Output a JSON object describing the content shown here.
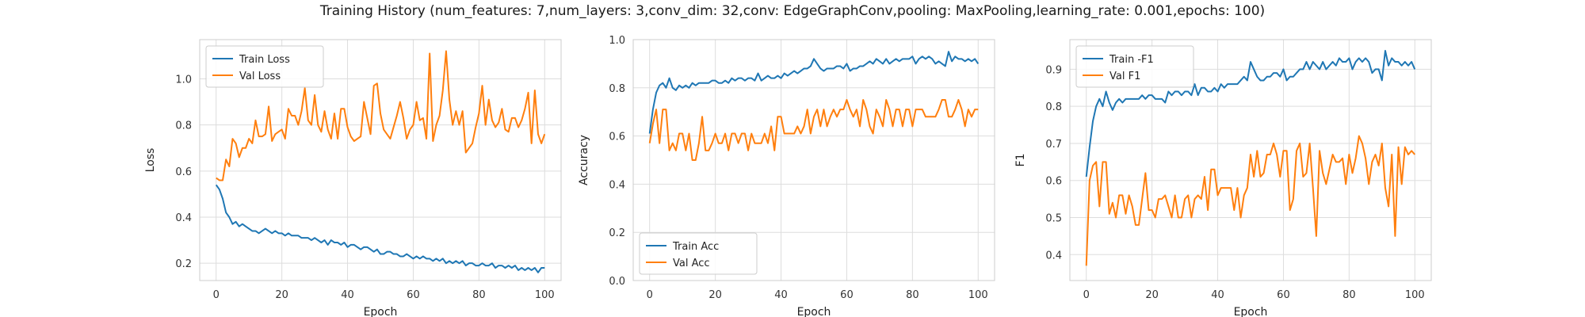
{
  "figure": {
    "title": "Training History (num_features: 7,num_layers: 3,conv_dim: 32,conv: EdgeGraphConv,pooling: MaxPooling,learning_rate: 0.001,epochs: 100)"
  },
  "colors": {
    "series1": "#1f77b4",
    "series2": "#ff7f0e",
    "grid": "#dddddd",
    "axis_text": "#333333"
  },
  "chart_data": [
    {
      "type": "line",
      "title": "",
      "xlabel": "Epoch",
      "ylabel": "Loss",
      "xlim": [
        -5,
        105
      ],
      "ylim": [
        0.125,
        1.17
      ],
      "xticks": [
        0,
        20,
        40,
        60,
        80,
        100
      ],
      "yticks": [
        0.2,
        0.4,
        0.6,
        0.8,
        1.0
      ],
      "ytick_labels": [
        "0.2",
        "0.4",
        "0.6",
        "0.8",
        "1.0"
      ],
      "grid": true,
      "legend": "upper-left",
      "x": [
        0,
        1,
        2,
        3,
        4,
        5,
        6,
        7,
        8,
        9,
        10,
        11,
        12,
        13,
        14,
        15,
        16,
        17,
        18,
        19,
        20,
        21,
        22,
        23,
        24,
        25,
        26,
        27,
        28,
        29,
        30,
        31,
        32,
        33,
        34,
        35,
        36,
        37,
        38,
        39,
        40,
        41,
        42,
        43,
        44,
        45,
        46,
        47,
        48,
        49,
        50,
        51,
        52,
        53,
        54,
        55,
        56,
        57,
        58,
        59,
        60,
        61,
        62,
        63,
        64,
        65,
        66,
        67,
        68,
        69,
        70,
        71,
        72,
        73,
        74,
        75,
        76,
        77,
        78,
        79,
        80,
        81,
        82,
        83,
        84,
        85,
        86,
        87,
        88,
        89,
        90,
        91,
        92,
        93,
        94,
        95,
        96,
        97,
        98,
        99,
        100
      ],
      "series": [
        {
          "name": "Train Loss",
          "values": [
            0.54,
            0.52,
            0.48,
            0.42,
            0.4,
            0.37,
            0.38,
            0.36,
            0.37,
            0.36,
            0.35,
            0.34,
            0.34,
            0.33,
            0.34,
            0.35,
            0.34,
            0.33,
            0.34,
            0.33,
            0.33,
            0.32,
            0.33,
            0.32,
            0.32,
            0.32,
            0.31,
            0.31,
            0.31,
            0.3,
            0.31,
            0.3,
            0.29,
            0.3,
            0.28,
            0.3,
            0.29,
            0.29,
            0.28,
            0.29,
            0.27,
            0.28,
            0.28,
            0.27,
            0.26,
            0.27,
            0.27,
            0.26,
            0.25,
            0.26,
            0.24,
            0.24,
            0.25,
            0.25,
            0.24,
            0.24,
            0.23,
            0.23,
            0.24,
            0.23,
            0.22,
            0.23,
            0.22,
            0.23,
            0.22,
            0.22,
            0.21,
            0.22,
            0.21,
            0.22,
            0.2,
            0.21,
            0.2,
            0.21,
            0.2,
            0.21,
            0.19,
            0.2,
            0.2,
            0.19,
            0.19,
            0.2,
            0.19,
            0.19,
            0.2,
            0.18,
            0.19,
            0.19,
            0.18,
            0.19,
            0.18,
            0.19,
            0.17,
            0.18,
            0.17,
            0.18,
            0.17,
            0.18,
            0.16,
            0.18,
            0.18
          ]
        },
        {
          "name": "Val Loss",
          "values": [
            0.57,
            0.56,
            0.56,
            0.65,
            0.62,
            0.74,
            0.72,
            0.66,
            0.7,
            0.7,
            0.74,
            0.72,
            0.82,
            0.75,
            0.75,
            0.76,
            0.88,
            0.73,
            0.76,
            0.77,
            0.78,
            0.74,
            0.87,
            0.84,
            0.84,
            0.8,
            0.86,
            0.96,
            0.82,
            0.8,
            0.93,
            0.8,
            0.77,
            0.86,
            0.78,
            0.74,
            0.85,
            0.74,
            0.87,
            0.87,
            0.79,
            0.75,
            0.73,
            0.74,
            0.75,
            0.9,
            0.83,
            0.76,
            0.97,
            0.98,
            0.85,
            0.78,
            0.76,
            0.74,
            0.79,
            0.84,
            0.9,
            0.83,
            0.74,
            0.78,
            0.8,
            0.9,
            0.82,
            0.83,
            0.74,
            1.11,
            0.73,
            0.8,
            0.84,
            0.95,
            1.12,
            0.91,
            0.8,
            0.86,
            0.8,
            0.86,
            0.68,
            0.7,
            0.72,
            0.79,
            0.85,
            0.97,
            0.8,
            0.91,
            0.82,
            0.79,
            0.81,
            0.87,
            0.78,
            0.77,
            0.83,
            0.83,
            0.79,
            0.82,
            0.87,
            0.94,
            0.72,
            0.95,
            0.76,
            0.72,
            0.76
          ]
        }
      ]
    },
    {
      "type": "line",
      "title": "",
      "xlabel": "Epoch",
      "ylabel": "Accuracy",
      "xlim": [
        -5,
        105
      ],
      "ylim": [
        0.0,
        1.0
      ],
      "xticks": [
        0,
        20,
        40,
        60,
        80,
        100
      ],
      "yticks": [
        0.0,
        0.2,
        0.4,
        0.6,
        0.8,
        1.0
      ],
      "ytick_labels": [
        "0.0",
        "0.2",
        "0.4",
        "0.6",
        "0.8",
        "1.0"
      ],
      "grid": true,
      "legend": "lower-left",
      "x": [
        0,
        1,
        2,
        3,
        4,
        5,
        6,
        7,
        8,
        9,
        10,
        11,
        12,
        13,
        14,
        15,
        16,
        17,
        18,
        19,
        20,
        21,
        22,
        23,
        24,
        25,
        26,
        27,
        28,
        29,
        30,
        31,
        32,
        33,
        34,
        35,
        36,
        37,
        38,
        39,
        40,
        41,
        42,
        43,
        44,
        45,
        46,
        47,
        48,
        49,
        50,
        51,
        52,
        53,
        54,
        55,
        56,
        57,
        58,
        59,
        60,
        61,
        62,
        63,
        64,
        65,
        66,
        67,
        68,
        69,
        70,
        71,
        72,
        73,
        74,
        75,
        76,
        77,
        78,
        79,
        80,
        81,
        82,
        83,
        84,
        85,
        86,
        87,
        88,
        89,
        90,
        91,
        92,
        93,
        94,
        95,
        96,
        97,
        98,
        99,
        100
      ],
      "series": [
        {
          "name": "Train Acc",
          "values": [
            0.61,
            0.71,
            0.78,
            0.81,
            0.82,
            0.8,
            0.84,
            0.8,
            0.79,
            0.81,
            0.8,
            0.81,
            0.8,
            0.82,
            0.81,
            0.82,
            0.82,
            0.82,
            0.82,
            0.83,
            0.83,
            0.82,
            0.82,
            0.83,
            0.82,
            0.84,
            0.83,
            0.84,
            0.84,
            0.83,
            0.84,
            0.84,
            0.83,
            0.86,
            0.83,
            0.84,
            0.85,
            0.84,
            0.84,
            0.85,
            0.84,
            0.86,
            0.85,
            0.86,
            0.87,
            0.86,
            0.87,
            0.88,
            0.88,
            0.89,
            0.92,
            0.9,
            0.88,
            0.87,
            0.88,
            0.88,
            0.88,
            0.89,
            0.89,
            0.88,
            0.9,
            0.87,
            0.88,
            0.88,
            0.89,
            0.89,
            0.9,
            0.91,
            0.9,
            0.92,
            0.91,
            0.9,
            0.92,
            0.9,
            0.91,
            0.92,
            0.91,
            0.92,
            0.92,
            0.92,
            0.93,
            0.9,
            0.92,
            0.93,
            0.92,
            0.93,
            0.92,
            0.9,
            0.91,
            0.9,
            0.89,
            0.95,
            0.91,
            0.93,
            0.92,
            0.92,
            0.91,
            0.92,
            0.91,
            0.92,
            0.9
          ]
        },
        {
          "name": "Val Acc",
          "values": [
            0.57,
            0.65,
            0.71,
            0.57,
            0.71,
            0.71,
            0.54,
            0.57,
            0.54,
            0.61,
            0.61,
            0.54,
            0.61,
            0.5,
            0.5,
            0.57,
            0.68,
            0.54,
            0.54,
            0.57,
            0.61,
            0.57,
            0.57,
            0.61,
            0.54,
            0.61,
            0.61,
            0.57,
            0.61,
            0.61,
            0.54,
            0.61,
            0.57,
            0.57,
            0.57,
            0.61,
            0.57,
            0.64,
            0.54,
            0.68,
            0.68,
            0.61,
            0.61,
            0.61,
            0.61,
            0.64,
            0.61,
            0.64,
            0.71,
            0.61,
            0.68,
            0.71,
            0.64,
            0.71,
            0.64,
            0.68,
            0.71,
            0.68,
            0.71,
            0.71,
            0.75,
            0.71,
            0.68,
            0.71,
            0.64,
            0.75,
            0.71,
            0.64,
            0.61,
            0.71,
            0.68,
            0.64,
            0.75,
            0.71,
            0.64,
            0.71,
            0.71,
            0.64,
            0.71,
            0.71,
            0.64,
            0.71,
            0.71,
            0.71,
            0.68,
            0.68,
            0.68,
            0.68,
            0.71,
            0.75,
            0.75,
            0.68,
            0.68,
            0.71,
            0.75,
            0.71,
            0.64,
            0.71,
            0.68,
            0.71,
            0.71
          ]
        }
      ]
    },
    {
      "type": "line",
      "title": "",
      "xlabel": "Epoch",
      "ylabel": "F1",
      "xlim": [
        -5,
        105
      ],
      "ylim": [
        0.33,
        0.98
      ],
      "xticks": [
        0,
        20,
        40,
        60,
        80,
        100
      ],
      "yticks": [
        0.4,
        0.5,
        0.6,
        0.7,
        0.8,
        0.9
      ],
      "ytick_labels": [
        "0.4",
        "0.5",
        "0.6",
        "0.7",
        "0.8",
        "0.9"
      ],
      "grid": true,
      "legend": "upper-left",
      "x": [
        0,
        1,
        2,
        3,
        4,
        5,
        6,
        7,
        8,
        9,
        10,
        11,
        12,
        13,
        14,
        15,
        16,
        17,
        18,
        19,
        20,
        21,
        22,
        23,
        24,
        25,
        26,
        27,
        28,
        29,
        30,
        31,
        32,
        33,
        34,
        35,
        36,
        37,
        38,
        39,
        40,
        41,
        42,
        43,
        44,
        45,
        46,
        47,
        48,
        49,
        50,
        51,
        52,
        53,
        54,
        55,
        56,
        57,
        58,
        59,
        60,
        61,
        62,
        63,
        64,
        65,
        66,
        67,
        68,
        69,
        70,
        71,
        72,
        73,
        74,
        75,
        76,
        77,
        78,
        79,
        80,
        81,
        82,
        83,
        84,
        85,
        86,
        87,
        88,
        89,
        90,
        91,
        92,
        93,
        94,
        95,
        96,
        97,
        98,
        99,
        100
      ],
      "series": [
        {
          "name": "Train -F1",
          "values": [
            0.61,
            0.69,
            0.76,
            0.8,
            0.82,
            0.8,
            0.84,
            0.81,
            0.79,
            0.81,
            0.82,
            0.81,
            0.82,
            0.82,
            0.82,
            0.82,
            0.82,
            0.83,
            0.82,
            0.83,
            0.83,
            0.82,
            0.82,
            0.82,
            0.81,
            0.84,
            0.83,
            0.84,
            0.84,
            0.83,
            0.84,
            0.84,
            0.83,
            0.86,
            0.83,
            0.85,
            0.85,
            0.84,
            0.84,
            0.85,
            0.84,
            0.86,
            0.85,
            0.86,
            0.86,
            0.86,
            0.86,
            0.87,
            0.88,
            0.87,
            0.92,
            0.9,
            0.88,
            0.87,
            0.87,
            0.88,
            0.88,
            0.89,
            0.89,
            0.88,
            0.9,
            0.87,
            0.88,
            0.88,
            0.89,
            0.9,
            0.9,
            0.92,
            0.9,
            0.92,
            0.91,
            0.9,
            0.92,
            0.9,
            0.91,
            0.92,
            0.91,
            0.93,
            0.92,
            0.92,
            0.93,
            0.9,
            0.92,
            0.93,
            0.92,
            0.93,
            0.92,
            0.89,
            0.9,
            0.9,
            0.87,
            0.95,
            0.91,
            0.93,
            0.92,
            0.92,
            0.91,
            0.92,
            0.91,
            0.92,
            0.9
          ]
        },
        {
          "name": "Val F1",
          "values": [
            0.37,
            0.6,
            0.64,
            0.65,
            0.53,
            0.65,
            0.65,
            0.51,
            0.54,
            0.5,
            0.56,
            0.56,
            0.51,
            0.56,
            0.53,
            0.48,
            0.48,
            0.55,
            0.62,
            0.52,
            0.52,
            0.5,
            0.55,
            0.55,
            0.56,
            0.53,
            0.5,
            0.56,
            0.5,
            0.5,
            0.55,
            0.56,
            0.5,
            0.55,
            0.56,
            0.55,
            0.61,
            0.52,
            0.63,
            0.63,
            0.56,
            0.58,
            0.58,
            0.58,
            0.58,
            0.52,
            0.58,
            0.5,
            0.56,
            0.58,
            0.67,
            0.61,
            0.68,
            0.61,
            0.62,
            0.67,
            0.67,
            0.7,
            0.67,
            0.61,
            0.68,
            0.68,
            0.52,
            0.55,
            0.68,
            0.7,
            0.61,
            0.62,
            0.7,
            0.58,
            0.45,
            0.68,
            0.62,
            0.59,
            0.63,
            0.67,
            0.65,
            0.65,
            0.66,
            0.59,
            0.67,
            0.62,
            0.66,
            0.72,
            0.7,
            0.66,
            0.59,
            0.65,
            0.67,
            0.64,
            0.7,
            0.58,
            0.53,
            0.67,
            0.45,
            0.69,
            0.59,
            0.69,
            0.67,
            0.68,
            0.67
          ]
        }
      ]
    }
  ]
}
